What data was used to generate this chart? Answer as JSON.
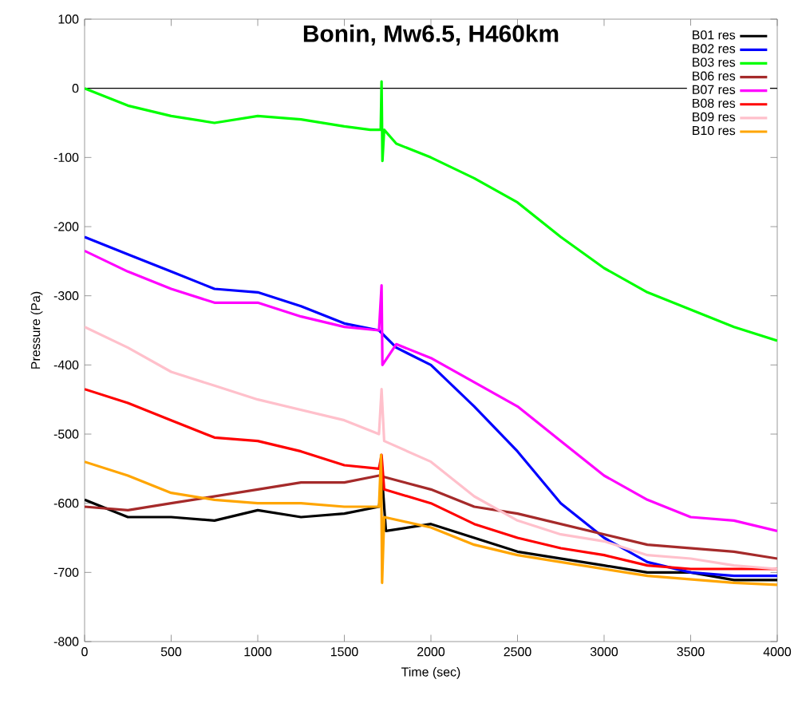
{
  "chart_data": {
    "type": "line",
    "title": "Bonin, Mw6.5, H460km",
    "xlabel": "Time (sec)",
    "ylabel": "Pressure (Pa)",
    "xlim": [
      0,
      4000
    ],
    "ylim": [
      -800,
      100
    ],
    "xticks": [
      0,
      500,
      1000,
      1500,
      2000,
      2500,
      3000,
      3500,
      4000
    ],
    "yticks": [
      -800,
      -700,
      -600,
      -500,
      -400,
      -300,
      -200,
      -100,
      0,
      100
    ],
    "grid": false,
    "legend": "top right",
    "marker": "none",
    "line_style": "solid",
    "ref_lines": [
      {
        "axis": "y",
        "value": 0,
        "color": "#000000"
      }
    ],
    "series": [
      {
        "name": "B01 res",
        "color": "#000000",
        "x": [
          0,
          250,
          500,
          750,
          1000,
          1250,
          1500,
          1700,
          1720,
          1740,
          2000,
          2250,
          2500,
          2750,
          3000,
          3250,
          3500,
          3750,
          4000
        ],
        "values": [
          -595,
          -620,
          -620,
          -625,
          -610,
          -620,
          -615,
          -605,
          -570,
          -640,
          -630,
          -650,
          -670,
          -680,
          -690,
          -700,
          -700,
          -711,
          -711
        ]
      },
      {
        "name": "B02 res",
        "color": "#0000ff",
        "x": [
          0,
          250,
          500,
          750,
          1000,
          1250,
          1500,
          1700,
          1800,
          2000,
          2250,
          2500,
          2750,
          3000,
          3250,
          3500,
          3750,
          4000
        ],
        "values": [
          -215,
          -240,
          -265,
          -290,
          -295,
          -315,
          -340,
          -350,
          -375,
          -400,
          -460,
          -525,
          -600,
          -650,
          -685,
          -700,
          -705,
          -705
        ]
      },
      {
        "name": "B03 res",
        "color": "#00ff00",
        "x": [
          0,
          250,
          500,
          750,
          1000,
          1250,
          1500,
          1650,
          1710,
          1715,
          1720,
          1730,
          1800,
          2000,
          2250,
          2500,
          2750,
          3000,
          3250,
          3500,
          3750,
          4000
        ],
        "values": [
          0,
          -25,
          -40,
          -50,
          -40,
          -45,
          -55,
          -60,
          -60,
          10,
          -105,
          -60,
          -80,
          -100,
          -130,
          -165,
          -215,
          -260,
          -295,
          -320,
          -345,
          -365
        ]
      },
      {
        "name": "B06 res",
        "color": "#a52a2a",
        "x": [
          0,
          250,
          500,
          750,
          1000,
          1250,
          1500,
          1700,
          2000,
          2250,
          2500,
          2750,
          3000,
          3250,
          3500,
          3750,
          4000
        ],
        "values": [
          -605,
          -610,
          -600,
          -590,
          -580,
          -570,
          -570,
          -560,
          -580,
          -605,
          -615,
          -630,
          -645,
          -660,
          -665,
          -670,
          -680
        ]
      },
      {
        "name": "B07 res",
        "color": "#ff00ff",
        "x": [
          0,
          250,
          500,
          750,
          1000,
          1250,
          1500,
          1700,
          1715,
          1720,
          1800,
          2000,
          2250,
          2500,
          2750,
          3000,
          3250,
          3500,
          3750,
          4000
        ],
        "values": [
          -235,
          -265,
          -290,
          -310,
          -310,
          -330,
          -345,
          -350,
          -285,
          -400,
          -370,
          -390,
          -425,
          -460,
          -510,
          -560,
          -595,
          -620,
          -625,
          -640
        ]
      },
      {
        "name": "B08 res",
        "color": "#ff0000",
        "x": [
          0,
          250,
          500,
          750,
          1000,
          1250,
          1500,
          1700,
          1715,
          1730,
          2000,
          2250,
          2500,
          2750,
          3000,
          3250,
          3500,
          3750,
          4000
        ],
        "values": [
          -435,
          -455,
          -480,
          -505,
          -510,
          -525,
          -545,
          -550,
          -530,
          -580,
          -600,
          -630,
          -650,
          -665,
          -675,
          -690,
          -695,
          -695,
          -695
        ]
      },
      {
        "name": "B09 res",
        "color": "#ffc0cb",
        "x": [
          0,
          250,
          500,
          750,
          1000,
          1250,
          1500,
          1700,
          1715,
          1730,
          2000,
          2250,
          2500,
          2750,
          3000,
          3250,
          3500,
          3750,
          4000
        ],
        "values": [
          -345,
          -375,
          -410,
          -430,
          -450,
          -465,
          -480,
          -500,
          -435,
          -510,
          -540,
          -590,
          -625,
          -645,
          -655,
          -675,
          -680,
          -690,
          -695
        ]
      },
      {
        "name": "B10 res",
        "color": "#ffa500",
        "x": [
          0,
          250,
          500,
          750,
          1000,
          1250,
          1500,
          1700,
          1712,
          1718,
          1730,
          2000,
          2250,
          2500,
          2750,
          3000,
          3250,
          3500,
          3750,
          4000
        ],
        "values": [
          -540,
          -560,
          -585,
          -595,
          -600,
          -600,
          -605,
          -605,
          -530,
          -715,
          -620,
          -635,
          -660,
          -675,
          -685,
          -695,
          -705,
          -710,
          -715,
          -718
        ]
      }
    ]
  }
}
